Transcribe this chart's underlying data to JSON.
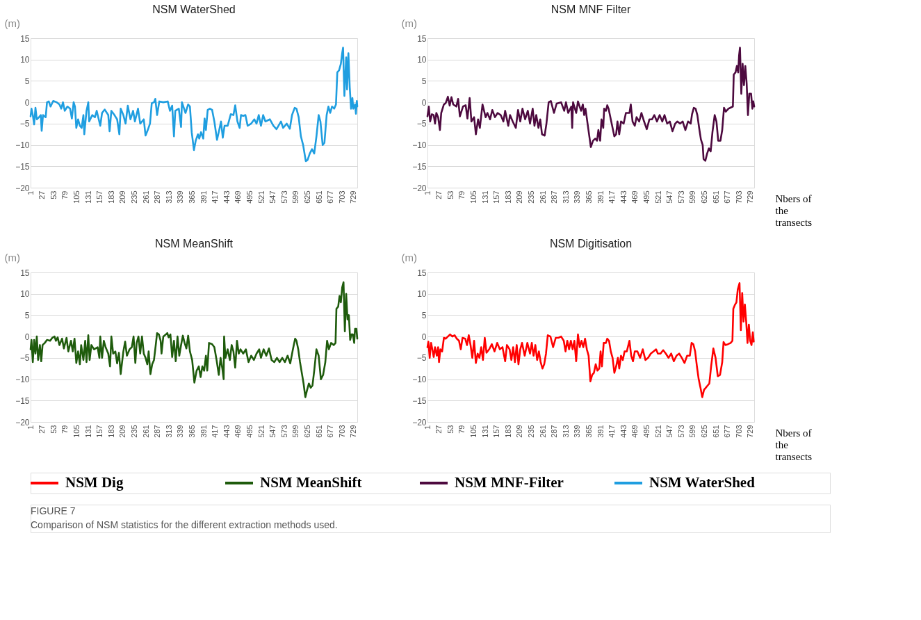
{
  "chart_data": [
    {
      "type": "line",
      "title": "NSM WaterShed",
      "ylabel": "(m)",
      "xlim": [
        1,
        737
      ],
      "xticks": [
        1,
        27,
        53,
        79,
        105,
        131,
        157,
        183,
        209,
        235,
        261,
        287,
        313,
        339,
        365,
        391,
        417,
        443,
        469,
        495,
        521,
        547,
        573,
        599,
        625,
        651,
        677,
        703,
        729
      ],
      "ylim": [
        -20,
        15
      ],
      "yticks": [
        -20,
        -15,
        -10,
        -5,
        0,
        5,
        10,
        15
      ],
      "grid": "y",
      "legend": "bottom",
      "series": [
        {
          "name": "NSM WaterShed",
          "color": "#1f9ee0",
          "x": [
            1,
            3,
            6,
            9,
            12,
            15,
            20,
            24,
            26,
            29,
            35,
            38,
            42,
            46,
            52,
            60,
            66,
            70,
            74,
            78,
            84,
            90,
            94,
            98,
            101,
            104,
            108,
            112,
            116,
            120,
            122,
            127,
            131,
            133,
            140,
            146,
            150,
            158,
            162,
            168,
            176,
            179,
            183,
            190,
            196,
            201,
            204,
            210,
            215,
            220,
            226,
            232,
            236,
            243,
            248,
            256,
            260,
            265,
            270,
            274,
            279,
            282,
            286,
            291,
            300,
            310,
            315,
            320,
            324,
            327,
            335,
            340,
            342,
            350,
            356,
            360,
            364,
            369,
            373,
            378,
            381,
            385,
            390,
            393,
            396,
            400,
            405,
            410,
            415,
            421,
            426,
            430,
            434,
            438,
            445,
            452,
            458,
            462,
            467,
            472,
            475,
            480,
            485,
            490,
            498,
            505,
            510,
            515,
            520,
            525,
            530,
            540,
            548,
            555,
            565,
            570,
            578,
            585,
            590,
            596,
            600,
            605,
            610,
            615,
            621,
            625,
            630,
            635,
            640,
            645,
            650,
            654,
            659,
            663,
            668,
            672,
            676,
            680,
            685,
            689,
            692,
            696,
            700,
            703,
            705,
            708,
            712,
            714,
            717,
            720,
            723,
            726,
            728,
            732,
            734,
            736,
            737
          ],
          "values": [
            -3.3,
            -1.5,
            -3,
            -5.2,
            -1.3,
            -4,
            -3.5,
            -3,
            -6.7,
            -3,
            -3.5,
            0,
            0.2,
            -1,
            0.3,
            0,
            -0.5,
            -1.5,
            0,
            -2,
            -1,
            -1.5,
            -3.8,
            0,
            -1,
            -6,
            -4,
            -5.5,
            -6,
            -3,
            -7.5,
            -2,
            0,
            -4.5,
            -3,
            -3.5,
            -2,
            -5.5,
            -2.5,
            -1.7,
            -3,
            -6.8,
            -2,
            -3,
            -4,
            -7.5,
            -1.5,
            -3,
            -5,
            -0.8,
            -4,
            -2,
            -4.5,
            -1.5,
            -5,
            -4,
            -7.8,
            -6.5,
            -5,
            -0.2,
            0,
            0.8,
            -3,
            0.2,
            0,
            0.2,
            -2,
            -0.8,
            -8,
            -2,
            -1.5,
            -5.8,
            0,
            -2.5,
            -0.5,
            -1,
            -7,
            -11.2,
            -9,
            -7.5,
            -8.5,
            -7,
            -8.5,
            -3.8,
            -6.5,
            -1.8,
            -1.5,
            -1.8,
            -4.5,
            -8.8,
            -6.5,
            -4.5,
            -8.3,
            -5.5,
            -5.5,
            -2.8,
            -3,
            -0.7,
            -4.5,
            -6,
            -3,
            -3.2,
            -3,
            -5.5,
            -5,
            -4,
            -5,
            -3,
            -5.5,
            -3,
            -4.5,
            -4,
            -5.5,
            -6.3,
            -4.5,
            -6,
            -5,
            -6.2,
            -3,
            -1.3,
            -1.5,
            -3.5,
            -8,
            -10,
            -13.8,
            -13.5,
            -12,
            -11,
            -12,
            -8,
            -3,
            -4.5,
            -10,
            -9.5,
            -3,
            -1,
            -2.5,
            -1,
            -1.5,
            -0.5,
            7,
            7.5,
            9,
            11.5,
            12.8,
            1.5,
            10.5,
            3,
            11.5,
            3.5,
            -1.5,
            1,
            -1.5,
            -0.5,
            -2.7,
            0.3,
            -1
          ]
        }
      ]
    },
    {
      "type": "line",
      "title": "NSM MNF Filter",
      "ylabel": "(m)",
      "xlabel": "Nbers of the transects",
      "xlim": [
        1,
        737
      ],
      "xticks": [
        1,
        27,
        53,
        79,
        105,
        131,
        157,
        183,
        209,
        235,
        261,
        287,
        313,
        339,
        365,
        391,
        417,
        443,
        469,
        495,
        521,
        547,
        573,
        599,
        625,
        651,
        677,
        703,
        729
      ],
      "ylim": [
        -20,
        15
      ],
      "yticks": [
        -20,
        -15,
        -10,
        -5,
        0,
        5,
        10,
        15
      ],
      "grid": "y",
      "legend": "bottom",
      "series": [
        {
          "name": "NSM MNF-Filter",
          "color": "#4d0a3f",
          "x": [
            1,
            4,
            7,
            11,
            15,
            18,
            21,
            25,
            29,
            32,
            38,
            42,
            47,
            51,
            55,
            59,
            66,
            70,
            74,
            81,
            87,
            91,
            96,
            100,
            106,
            110,
            115,
            119,
            125,
            132,
            136,
            142,
            147,
            153,
            159,
            166,
            172,
            176,
            183,
            187,
            193,
            200,
            205,
            210,
            215,
            221,
            227,
            232,
            238,
            242,
            246,
            251,
            255,
            259,
            265,
            269,
            274,
            279,
            286,
            292,
            302,
            309,
            313,
            318,
            325,
            327,
            329,
            336,
            340,
            347,
            351,
            354,
            357,
            369,
            374,
            379,
            383,
            386,
            390,
            393,
            397,
            399,
            403,
            406,
            409,
            414,
            418,
            422,
            426,
            429,
            433,
            437,
            443,
            448,
            456,
            459,
            463,
            468,
            472,
            478,
            483,
            489,
            495,
            501,
            507,
            512,
            518,
            524,
            530,
            535,
            541,
            547,
            553,
            559,
            564,
            570,
            576,
            582,
            588,
            594,
            597,
            601,
            605,
            609,
            613,
            617,
            621,
            623,
            627,
            631,
            635,
            639,
            643,
            648,
            652,
            656,
            661,
            665,
            669,
            673,
            679,
            685,
            689,
            691,
            695,
            698,
            701,
            703,
            705,
            708,
            711,
            714,
            717,
            720,
            723,
            726,
            730,
            733,
            735,
            737
          ],
          "values": [
            -3.3,
            -1,
            -4.5,
            -2.8,
            -3,
            -5,
            -2.5,
            -3.5,
            -6.5,
            -2.5,
            -0.5,
            -0.2,
            1.3,
            -0.8,
            1.2,
            -0.5,
            -1,
            0.8,
            -3.3,
            -1,
            -0.7,
            -3.8,
            1,
            -4.5,
            -3.5,
            -7.5,
            -4,
            -6,
            -0.5,
            -3.5,
            -2.5,
            -4,
            -1.8,
            -3.5,
            -2.5,
            -3,
            -4.5,
            -2,
            -5.5,
            -3,
            -4.5,
            -6,
            -1.8,
            -4.5,
            -1.5,
            -4,
            -2,
            -5,
            -1.5,
            -5.5,
            -3,
            -6,
            -4,
            -7.5,
            -7.8,
            -5,
            0,
            0.3,
            -2.5,
            -0.3,
            0,
            -2,
            0,
            -2.5,
            -1,
            -6,
            0,
            -2.5,
            0.2,
            -2,
            -0.5,
            -3,
            -1.5,
            -10.5,
            -9,
            -8.5,
            -9,
            -6.5,
            -9,
            -4,
            -6,
            -1.5,
            -2,
            -0.7,
            -1.5,
            -4,
            -6,
            -8,
            -7.5,
            -4.5,
            -7.5,
            -4.5,
            -5,
            -2.5,
            -2.5,
            -0.5,
            -4.5,
            -5.5,
            -3.5,
            -4.5,
            -2.5,
            -4.5,
            -6.3,
            -4,
            -4,
            -3,
            -4.5,
            -3,
            -4.5,
            -3,
            -5,
            -4.5,
            -6.8,
            -5,
            -4.5,
            -5,
            -4.5,
            -6.5,
            -4.5,
            -5,
            -2.8,
            -1.3,
            -1.5,
            -3,
            -6,
            -8.7,
            -10,
            -13.3,
            -13.7,
            -12,
            -10.8,
            -11.5,
            -7,
            -3,
            -4.5,
            -9,
            -9,
            -6.5,
            -1.3,
            -2.2,
            -1.5,
            -1.2,
            -1,
            6.5,
            7,
            8.5,
            7,
            11,
            12.8,
            2,
            9,
            4,
            8.5,
            4.5,
            -3,
            2,
            2,
            -1.5,
            0.2,
            -1
          ]
        }
      ]
    },
    {
      "type": "line",
      "title": "NSM MeanShift",
      "ylabel": "(m)",
      "xlim": [
        1,
        737
      ],
      "xticks": [
        1,
        27,
        53,
        79,
        105,
        131,
        157,
        183,
        209,
        235,
        261,
        287,
        313,
        339,
        365,
        391,
        417,
        443,
        469,
        495,
        521,
        547,
        573,
        599,
        625,
        651,
        677,
        703,
        729
      ],
      "ylim": [
        -20,
        15
      ],
      "yticks": [
        -20,
        -15,
        -10,
        -5,
        0,
        5,
        10,
        15
      ],
      "grid": "y",
      "legend": "bottom",
      "series": [
        {
          "name": "NSM MeanShift",
          "color": "#1e5b0c",
          "x": [
            1,
            3,
            6,
            9,
            12,
            15,
            18,
            22,
            25,
            28,
            33,
            38,
            45,
            50,
            55,
            58,
            62,
            66,
            72,
            76,
            82,
            86,
            92,
            96,
            100,
            104,
            108,
            112,
            115,
            120,
            124,
            127,
            131,
            134,
            138,
            144,
            152,
            156,
            158,
            162,
            166,
            170,
            176,
            180,
            183,
            187,
            192,
            196,
            200,
            204,
            210,
            214,
            218,
            224,
            229,
            233,
            237,
            240,
            244,
            248,
            252,
            256,
            260,
            264,
            267,
            271,
            275,
            279,
            283,
            286,
            290,
            294,
            296,
            300,
            306,
            309,
            312,
            316,
            320,
            324,
            328,
            332,
            336,
            340,
            344,
            348,
            352,
            356,
            360,
            365,
            370,
            375,
            380,
            384,
            388,
            392,
            396,
            399,
            403,
            410,
            415,
            420,
            425,
            429,
            433,
            436,
            437,
            440,
            445,
            450,
            454,
            458,
            462,
            466,
            470,
            474,
            480,
            486,
            492,
            498,
            504,
            510,
            516,
            520,
            526,
            532,
            538,
            544,
            550,
            556,
            562,
            568,
            574,
            580,
            586,
            592,
            597,
            600,
            604,
            608,
            612,
            616,
            620,
            624,
            628,
            632,
            636,
            640,
            645,
            650,
            655,
            660,
            665,
            669,
            673,
            678,
            684,
            688,
            690,
            694,
            697,
            700,
            703,
            706,
            709,
            712,
            715,
            718,
            721,
            724,
            727,
            730,
            732,
            735,
            737
          ],
          "values": [
            -3,
            -0.8,
            -6,
            -0.8,
            -4,
            0,
            -5.5,
            -2,
            -5.8,
            -2,
            -1.5,
            -0.8,
            -1,
            -0.3,
            0,
            -1,
            -0.2,
            -2,
            -0.5,
            -2.8,
            -0.3,
            -3.5,
            -1,
            -3.5,
            -0.5,
            -6.2,
            -3.5,
            -6.5,
            -2,
            -5.5,
            -1,
            -6,
            0.3,
            -5.5,
            -2,
            -3,
            -2.5,
            -5,
            0,
            -5,
            -1,
            -2.5,
            -4,
            -7,
            0,
            -4,
            -3.5,
            -6.3,
            -3.8,
            -8.8,
            -3.5,
            -1.2,
            -4.5,
            -3,
            -2.5,
            0,
            -6.2,
            -1.5,
            0,
            -4,
            0,
            -4,
            -5,
            -6.5,
            -3.5,
            -8.8,
            -6.5,
            -5.5,
            -2,
            0.8,
            0.5,
            -1,
            -4,
            0,
            0.5,
            0.8,
            -0.2,
            0.5,
            -4.8,
            -1,
            -5.8,
            0,
            -4.5,
            -2,
            0.2,
            -1.5,
            -2.8,
            0.2,
            -3.5,
            -5.5,
            -10.8,
            -8,
            -7,
            -9.5,
            -7,
            -8,
            -4.5,
            -8,
            -1.5,
            -1.8,
            -2.5,
            -5.5,
            -9,
            -5,
            -7.5,
            -10,
            0,
            -5,
            -3,
            -5.5,
            -2,
            -3.5,
            -7.3,
            -1,
            -4,
            -3,
            -4,
            -3,
            -6,
            -4.5,
            -5.5,
            -4,
            -3,
            -5,
            -3,
            -4.5,
            -2.8,
            -5.5,
            -6,
            -5,
            -6,
            -5,
            -6,
            -4.5,
            -6.3,
            -3,
            -0.5,
            -1,
            -3,
            -6,
            -8.5,
            -11,
            -14.2,
            -12.5,
            -11,
            -12,
            -11.5,
            -8,
            -3,
            -4.5,
            -10,
            -9,
            -6,
            -1,
            -3,
            -1.5,
            -2,
            -1.5,
            6.5,
            7,
            9.5,
            8,
            11.5,
            12.7,
            1.2,
            10,
            4,
            5,
            -0.8,
            0.5,
            0.5,
            -1.5,
            1.8,
            1.8,
            -0.5
          ]
        }
      ]
    },
    {
      "type": "line",
      "title": "NSM Digitisation",
      "ylabel": "(m)",
      "xlabel": "Nbers of the transects",
      "xlim": [
        1,
        737
      ],
      "xticks": [
        1,
        27,
        53,
        79,
        105,
        131,
        157,
        183,
        209,
        235,
        261,
        287,
        313,
        339,
        365,
        391,
        417,
        443,
        469,
        495,
        521,
        547,
        573,
        599,
        625,
        651,
        677,
        703,
        729
      ],
      "ylim": [
        -20,
        15
      ],
      "yticks": [
        -20,
        -15,
        -10,
        -5,
        0,
        5,
        10,
        15
      ],
      "grid": "y",
      "legend": "bottom",
      "annotations": [
        "FIGURE 7",
        "Comparison of NSM statistics for the different extraction methods used."
      ],
      "series": [
        {
          "name": "NSM Dig",
          "color": "#ff0000",
          "x": [
            1,
            3,
            6,
            9,
            12,
            15,
            18,
            22,
            25,
            27,
            30,
            34,
            38,
            42,
            47,
            52,
            57,
            62,
            67,
            72,
            76,
            80,
            86,
            90,
            94,
            98,
            102,
            106,
            110,
            114,
            118,
            122,
            126,
            130,
            134,
            140,
            146,
            152,
            158,
            164,
            170,
            176,
            180,
            186,
            190,
            194,
            198,
            202,
            206,
            210,
            214,
            220,
            226,
            232,
            236,
            240,
            244,
            248,
            252,
            256,
            260,
            264,
            268,
            272,
            278,
            284,
            290,
            296,
            302,
            308,
            312,
            316,
            320,
            324,
            328,
            332,
            336,
            340,
            344,
            348,
            352,
            356,
            360,
            364,
            368,
            372,
            376,
            380,
            384,
            388,
            391,
            394,
            398,
            403,
            406,
            410,
            414,
            418,
            422,
            426,
            430,
            433,
            437,
            441,
            445,
            450,
            456,
            460,
            464,
            468,
            474,
            480,
            486,
            492,
            498,
            504,
            510,
            516,
            520,
            526,
            532,
            538,
            544,
            550,
            556,
            562,
            568,
            574,
            580,
            586,
            592,
            596,
            600,
            604,
            608,
            612,
            616,
            620,
            624,
            628,
            632,
            636,
            640,
            645,
            650,
            655,
            660,
            665,
            668,
            672,
            678,
            684,
            688,
            690,
            694,
            697,
            700,
            704,
            707,
            710,
            713,
            716,
            719,
            722,
            725,
            728,
            731,
            734,
            736
          ],
          "values": [
            -2.5,
            -1.2,
            -5,
            -1.5,
            -3,
            -4.8,
            -2.5,
            -4.5,
            -2.5,
            -6,
            -3,
            -3.5,
            -0.3,
            -0.5,
            0,
            0.5,
            0,
            0.3,
            -0.5,
            -1,
            -3,
            -0.3,
            -0.5,
            -2,
            0.3,
            -2,
            -5,
            -1,
            -6.2,
            -4,
            -5,
            -2.5,
            -5.5,
            -0.3,
            -3.8,
            -3,
            -1.8,
            -3.5,
            -1.5,
            -3,
            -2.5,
            -5.8,
            -2,
            -3,
            -5.5,
            -2.5,
            -6,
            -2,
            -6.5,
            -3,
            -1.5,
            -4.5,
            -1.5,
            -4,
            -1.5,
            -4.5,
            -2,
            -5.5,
            -3.5,
            -6,
            -7.5,
            -6.5,
            -4,
            0.3,
            0,
            -2.5,
            -0.3,
            -0.3,
            0,
            -1,
            -3.5,
            -1,
            -3,
            -1,
            -3,
            -1,
            -5.8,
            0.5,
            -2.5,
            -1,
            -2.5,
            -0.5,
            -3,
            -4.5,
            -10.5,
            -9,
            -8.5,
            -6.5,
            -8,
            -7.5,
            -3.5,
            -7,
            -1.5,
            -1.5,
            -0.5,
            -1,
            -3.5,
            -5,
            -8.5,
            -7,
            -5,
            -7.5,
            -4.5,
            -5.5,
            -3.5,
            -3.5,
            -1,
            -4.5,
            -5.8,
            -3.5,
            -3.5,
            -5,
            -3,
            -5.5,
            -5,
            -4,
            -3.5,
            -3,
            -4,
            -4,
            -3.2,
            -4,
            -5,
            -4,
            -5.8,
            -4.5,
            -4,
            -5,
            -6.2,
            -4.5,
            -4.5,
            -1.5,
            -1.8,
            -3.5,
            -7,
            -10,
            -12,
            -14.2,
            -12.5,
            -12,
            -11.5,
            -11,
            -7,
            -2.8,
            -5,
            -9.3,
            -9,
            -6,
            -1.3,
            -2,
            -1.8,
            -1.5,
            -1,
            6.5,
            7.5,
            8,
            11,
            12.5,
            1.5,
            10.2,
            3.5,
            7.5,
            3.5,
            -1.5,
            2.8,
            -1,
            -2,
            1,
            -1.2
          ]
        }
      ]
    }
  ]
}
